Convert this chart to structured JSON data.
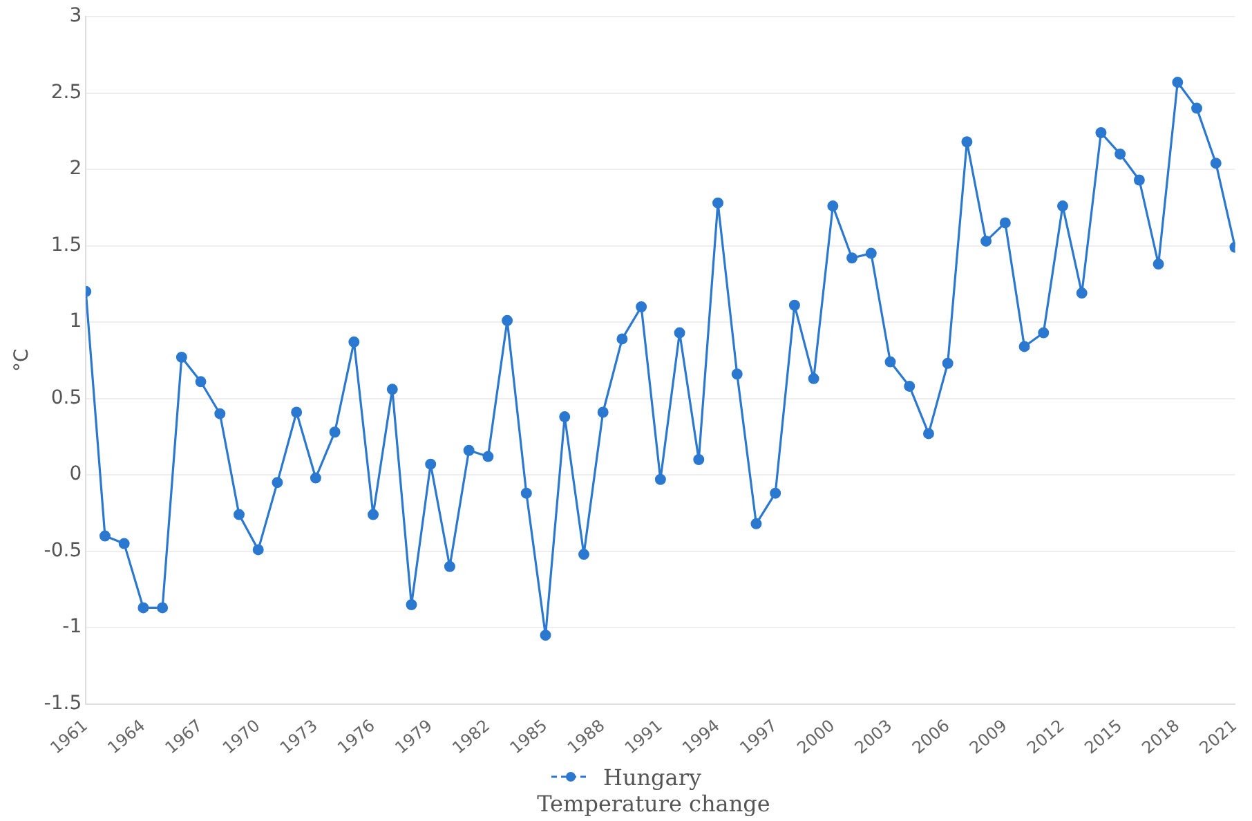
{
  "chart_data": {
    "type": "line",
    "ylabel": "°C",
    "legend_title": "Temperature change",
    "x": [
      1961,
      1962,
      1963,
      1964,
      1965,
      1966,
      1967,
      1968,
      1969,
      1970,
      1971,
      1972,
      1973,
      1974,
      1975,
      1976,
      1977,
      1978,
      1979,
      1980,
      1981,
      1982,
      1983,
      1984,
      1985,
      1986,
      1987,
      1988,
      1989,
      1990,
      1991,
      1992,
      1993,
      1994,
      1995,
      1996,
      1997,
      1998,
      1999,
      2000,
      2001,
      2002,
      2003,
      2004,
      2005,
      2006,
      2007,
      2008,
      2009,
      2010,
      2011,
      2012,
      2013,
      2014,
      2015,
      2016,
      2017,
      2018,
      2019,
      2020,
      2021
    ],
    "series": [
      {
        "name": "Hungary",
        "color": "#2a78cf",
        "values": [
          1.2,
          -0.4,
          -0.45,
          -0.87,
          -0.87,
          0.77,
          0.61,
          0.4,
          -0.26,
          -0.49,
          -0.05,
          0.41,
          -0.02,
          0.28,
          0.87,
          -0.26,
          0.56,
          -0.85,
          0.07,
          -0.6,
          0.16,
          0.12,
          1.01,
          -0.12,
          -1.05,
          0.38,
          -0.52,
          0.41,
          0.89,
          1.1,
          -0.03,
          0.93,
          0.1,
          1.78,
          0.66,
          -0.32,
          -0.12,
          1.11,
          0.63,
          1.76,
          1.42,
          1.45,
          0.74,
          0.58,
          0.27,
          0.73,
          2.18,
          1.53,
          1.65,
          0.84,
          0.93,
          1.76,
          1.19,
          2.24,
          2.1,
          1.93,
          1.38,
          2.57,
          2.4,
          2.04,
          1.49
        ]
      }
    ],
    "xlim": [
      1961,
      2021
    ],
    "xticks": [
      1961,
      1964,
      1967,
      1970,
      1973,
      1976,
      1979,
      1982,
      1985,
      1988,
      1991,
      1994,
      1997,
      2000,
      2003,
      2006,
      2009,
      2012,
      2015,
      2018,
      2021
    ],
    "ylim": [
      -1.5,
      3
    ],
    "yticks": [
      -1.5,
      -1,
      -0.5,
      0,
      0.5,
      1,
      1.5,
      2,
      2.5,
      3
    ],
    "grid": "y",
    "legend": "bottom",
    "marker": "circle",
    "line_style": "solid"
  }
}
